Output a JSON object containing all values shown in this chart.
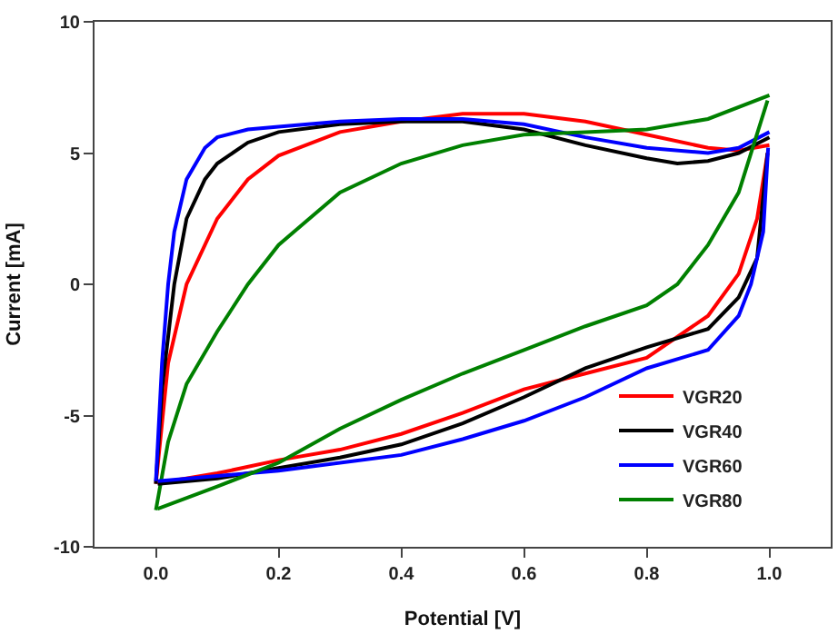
{
  "chart_data": {
    "type": "line",
    "xlabel": "Potential [V]",
    "ylabel": "Current [mA]",
    "xlim": [
      -0.1,
      1.1
    ],
    "ylim": [
      -10,
      10
    ],
    "xticks": [
      {
        "value": 0,
        "label": "0.0"
      },
      {
        "value": 0.2,
        "label": "0.2"
      },
      {
        "value": 0.4,
        "label": "0.4"
      },
      {
        "value": 0.6,
        "label": "0.6"
      },
      {
        "value": 0.8,
        "label": "0.8"
      },
      {
        "value": 1,
        "label": "1.0"
      }
    ],
    "yticks": [
      -10,
      -5,
      0,
      5,
      10
    ],
    "legend": "bottom right",
    "marker": "none",
    "line_style": "solid",
    "series": [
      {
        "name": "VGR20",
        "color": "#ff0000",
        "x": [
          0,
          0.02,
          0.05,
          0.1,
          0.15,
          0.2,
          0.3,
          0.4,
          0.5,
          0.6,
          0.7,
          0.8,
          0.9,
          0.95,
          1.0
        ],
        "values": [
          -7.6,
          -3,
          0,
          2.5,
          4,
          4.9,
          5.8,
          6.2,
          6.5,
          6.5,
          6.2,
          5.7,
          5.2,
          5.1,
          5.3
        ]
      },
      {
        "name": "VGR40",
        "color": "#000000",
        "x": [
          0,
          0.01,
          0.03,
          0.05,
          0.08,
          0.1,
          0.15,
          0.2,
          0.3,
          0.4,
          0.5,
          0.6,
          0.7,
          0.8,
          0.85,
          0.9,
          0.95,
          1.0
        ],
        "values": [
          -7.6,
          -4,
          0,
          2.5,
          4,
          4.6,
          5.4,
          5.8,
          6.1,
          6.2,
          6.2,
          5.9,
          5.3,
          4.8,
          4.6,
          4.7,
          5,
          5.6
        ]
      },
      {
        "name": "VGR60",
        "color": "#0000ff",
        "x": [
          0,
          0.01,
          0.02,
          0.03,
          0.05,
          0.08,
          0.1,
          0.15,
          0.2,
          0.3,
          0.4,
          0.5,
          0.6,
          0.7,
          0.8,
          0.9,
          0.95,
          1.0
        ],
        "values": [
          -7.5,
          -3,
          0,
          2,
          4,
          5.2,
          5.6,
          5.9,
          6,
          6.2,
          6.3,
          6.3,
          6.1,
          5.6,
          5.2,
          5,
          5.2,
          5.8
        ]
      },
      {
        "name": "VGR80",
        "color": "#008000",
        "x": [
          0,
          0.02,
          0.05,
          0.1,
          0.15,
          0.2,
          0.3,
          0.4,
          0.5,
          0.6,
          0.7,
          0.8,
          0.9,
          1.0
        ],
        "values": [
          -8.6,
          -6,
          -3.8,
          -1.8,
          0,
          1.5,
          3.5,
          4.6,
          5.3,
          5.7,
          5.8,
          5.9,
          6.3,
          7.2
        ]
      },
      {
        "color": "#ff0000",
        "x": [
          0.003,
          0.1,
          0.2,
          0.3,
          0.4,
          0.5,
          0.6,
          0.7,
          0.8,
          0.9,
          0.95,
          0.98,
          0.997
        ],
        "values": [
          -7.58,
          -7.2,
          -6.7,
          -6.3,
          -5.7,
          -4.9,
          -4,
          -3.4,
          -2.8,
          -1.2,
          0.4,
          2.5,
          5
        ]
      },
      {
        "color": "#000000",
        "x": [
          0.003,
          0.1,
          0.2,
          0.3,
          0.4,
          0.5,
          0.6,
          0.7,
          0.8,
          0.9,
          0.95,
          0.98,
          0.997
        ],
        "values": [
          -7.6,
          -7.4,
          -7,
          -6.6,
          -6.1,
          -5.3,
          -4.3,
          -3.2,
          -2.4,
          -1.7,
          -0.5,
          1,
          5
        ]
      },
      {
        "color": "#0000ff",
        "x": [
          0.003,
          0.1,
          0.2,
          0.3,
          0.4,
          0.5,
          0.6,
          0.7,
          0.8,
          0.9,
          0.95,
          0.97,
          0.99,
          0.998
        ],
        "values": [
          -7.5,
          -7.3,
          -7.1,
          -6.8,
          -6.5,
          -5.9,
          -5.2,
          -4.3,
          -3.2,
          -2.5,
          -1.2,
          0,
          2,
          5.2
        ]
      },
      {
        "color": "#008000",
        "x": [
          0.003,
          0.1,
          0.2,
          0.3,
          0.4,
          0.5,
          0.6,
          0.7,
          0.8,
          0.85,
          0.9,
          0.95,
          0.997
        ],
        "values": [
          -8.55,
          -7.7,
          -6.8,
          -5.5,
          -4.4,
          -3.4,
          -2.5,
          -1.6,
          -0.8,
          0,
          1.5,
          3.5,
          7
        ]
      }
    ]
  }
}
